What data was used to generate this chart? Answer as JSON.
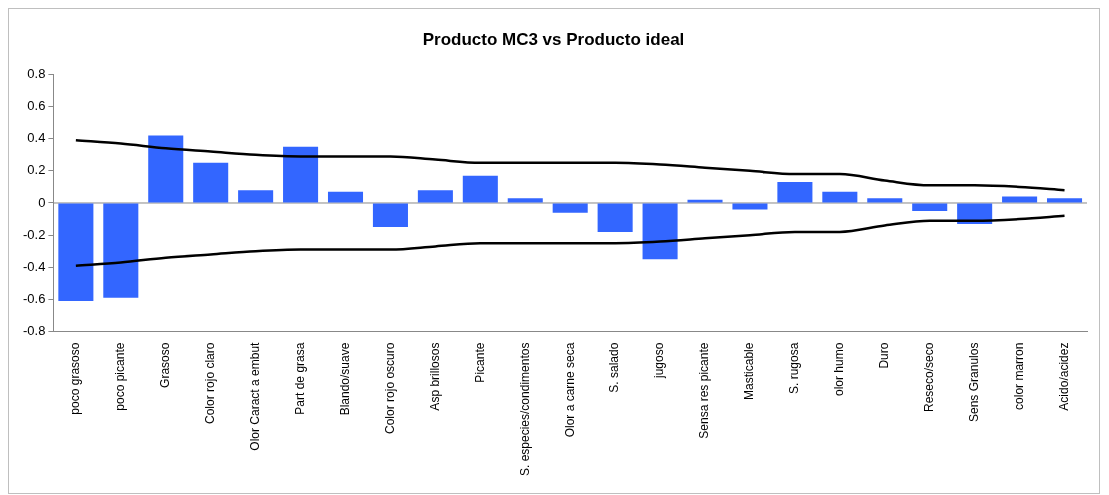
{
  "chart_data": {
    "type": "bar",
    "title": "Producto MC3 vs Producto ideal",
    "categories": [
      "poco grasoso",
      "poco picante",
      "Grasoso",
      "Color rojo claro",
      "Olor Caract a embut",
      "Part de grasa",
      "Blando/suave",
      "Color rojo oscuro",
      "Asp brillosos",
      "Picante",
      "S. especies/condimentos",
      "Olor a carne seca",
      "S. salado",
      "jugoso",
      "Sensa res picante",
      "Masticable",
      "S. rugosa",
      "olor humo",
      "Duro",
      "Reseco/seco",
      "Sens Granulos",
      "color marron",
      "Acido/acidez"
    ],
    "series": [
      {
        "color": "#3366ff",
        "values": [
          -0.61,
          -0.59,
          0.42,
          0.25,
          0.08,
          0.35,
          0.07,
          -0.15,
          0.08,
          0.17,
          0.03,
          -0.06,
          -0.18,
          -0.35,
          0.02,
          -0.04,
          0.13,
          0.07,
          0.03,
          -0.05,
          -0.13,
          0.04,
          0.03
        ]
      },
      {
        "type": "line",
        "color": "#000000",
        "values": [
          0.39,
          0.37,
          0.34,
          0.32,
          0.3,
          0.29,
          0.29,
          0.29,
          0.27,
          0.25,
          0.25,
          0.25,
          0.25,
          0.24,
          0.22,
          0.2,
          0.18,
          0.18,
          0.14,
          0.11,
          0.11,
          0.1,
          0.08
        ]
      },
      {
        "type": "line",
        "color": "#000000",
        "values": [
          -0.39,
          -0.37,
          -0.34,
          -0.32,
          -0.3,
          -0.29,
          -0.29,
          -0.29,
          -0.27,
          -0.25,
          -0.25,
          -0.25,
          -0.25,
          -0.24,
          -0.22,
          -0.2,
          -0.18,
          -0.18,
          -0.14,
          -0.11,
          -0.11,
          -0.1,
          -0.08
        ]
      }
    ],
    "ylim": [
      -0.8,
      0.8
    ],
    "yticks": [
      -0.8,
      -0.6,
      -0.4,
      -0.2,
      0,
      0.2,
      0.4,
      0.6,
      0.8
    ],
    "ref_lines": [
      {
        "axis": "y",
        "value": 0,
        "color": "#888888"
      }
    ],
    "grid": false,
    "legend": false,
    "marker": "none"
  }
}
